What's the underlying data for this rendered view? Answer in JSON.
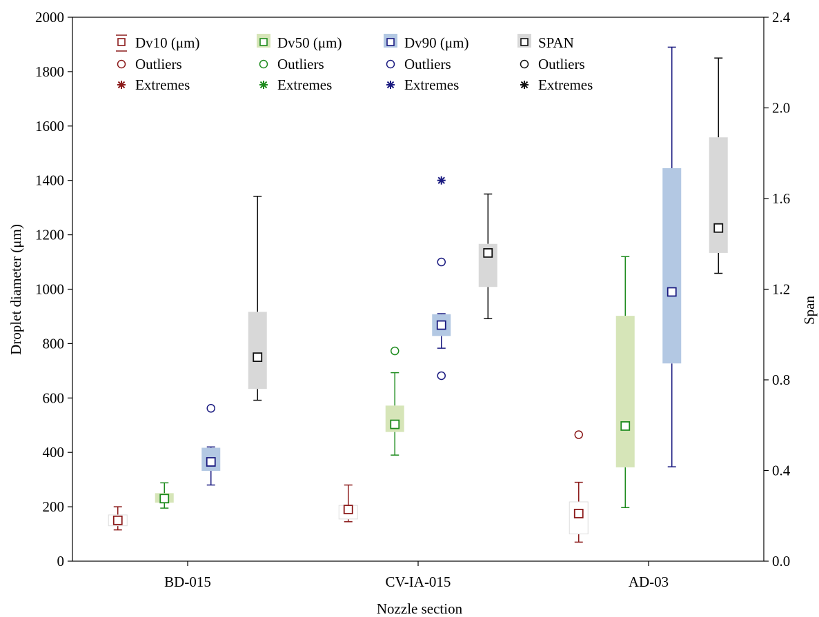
{
  "chart_data": {
    "type": "boxplot",
    "xlabel": "Nozzle section",
    "ylabel_left": "Droplet diameter (μm)",
    "ylabel_right": "Span",
    "categories": [
      "BD-015",
      "CV-IA-015",
      "AD-03"
    ],
    "ylim_left": [
      0,
      2000
    ],
    "ylim_right": [
      0,
      2.4
    ],
    "yticks_left": [
      "0",
      "200",
      "400",
      "600",
      "800",
      "1000",
      "1200",
      "1400",
      "1600",
      "1800",
      "2000"
    ],
    "yticks_right": [
      "0.0",
      "0.4",
      "0.8",
      "1.2",
      "1.6",
      "2.0",
      "2.4"
    ],
    "grid": false,
    "legend_position": "top",
    "series": [
      {
        "name": "Dv10 (μm)",
        "axis": "left",
        "color": "#8B1A1A",
        "fill": "#ffffff",
        "outliers_label": "Outliers",
        "extremes_label": "Extremes",
        "boxes": [
          {
            "category": "BD-015",
            "median": 150,
            "q1": 130,
            "q3": 170,
            "whisker_low": 115,
            "whisker_high": 200,
            "outliers": [],
            "extremes": []
          },
          {
            "category": "CV-IA-015",
            "median": 190,
            "q1": 155,
            "q3": 205,
            "whisker_low": 145,
            "whisker_high": 280,
            "outliers": [],
            "extremes": []
          },
          {
            "category": "AD-03",
            "median": 175,
            "q1": 100,
            "q3": 218,
            "whisker_low": 70,
            "whisker_high": 290,
            "outliers": [
              465
            ],
            "extremes": []
          }
        ]
      },
      {
        "name": "Dv50 (μm)",
        "axis": "left",
        "color": "#1E8B1E",
        "fill": "#d6e5b8",
        "outliers_label": "Outliers",
        "extremes_label": "Extremes",
        "boxes": [
          {
            "category": "BD-015",
            "median": 230,
            "q1": 215,
            "q3": 250,
            "whisker_low": 195,
            "whisker_high": 288,
            "outliers": [],
            "extremes": []
          },
          {
            "category": "CV-IA-015",
            "median": 503,
            "q1": 475,
            "q3": 572,
            "whisker_low": 390,
            "whisker_high": 693,
            "outliers": [
              773
            ],
            "extremes": []
          },
          {
            "category": "AD-03",
            "median": 497,
            "q1": 345,
            "q3": 902,
            "whisker_low": 197,
            "whisker_high": 1120,
            "outliers": [],
            "extremes": []
          }
        ]
      },
      {
        "name": "Dv90 (μm)",
        "axis": "left",
        "color": "#1A1A80",
        "fill": "#b3c8e3",
        "outliers_label": "Outliers",
        "extremes_label": "Extremes",
        "boxes": [
          {
            "category": "BD-015",
            "median": 365,
            "q1": 332,
            "q3": 417,
            "whisker_low": 280,
            "whisker_high": 420,
            "outliers": [
              562
            ],
            "extremes": []
          },
          {
            "category": "CV-IA-015",
            "median": 868,
            "q1": 828,
            "q3": 908,
            "whisker_low": 783,
            "whisker_high": 910,
            "outliers": [
              1100,
              682
            ],
            "extremes": [
              1400
            ]
          },
          {
            "category": "AD-03",
            "median": 990,
            "q1": 727,
            "q3": 1445,
            "whisker_low": 347,
            "whisker_high": 1890,
            "outliers": [],
            "extremes": []
          }
        ]
      },
      {
        "name": "SPAN",
        "axis": "right",
        "color": "#111111",
        "fill": "#d8d8d8",
        "outliers_label": "Outliers",
        "extremes_label": "Extremes",
        "boxes": [
          {
            "category": "BD-015",
            "median": 0.9,
            "q1": 0.76,
            "q3": 1.1,
            "whisker_low": 0.71,
            "whisker_high": 1.61,
            "outliers": [],
            "extremes": []
          },
          {
            "category": "CV-IA-015",
            "median": 1.36,
            "q1": 1.21,
            "q3": 1.4,
            "whisker_low": 1.07,
            "whisker_high": 1.62,
            "outliers": [],
            "extremes": []
          },
          {
            "category": "AD-03",
            "median": 1.47,
            "q1": 1.36,
            "q3": 1.87,
            "whisker_low": 1.27,
            "whisker_high": 2.22,
            "outliers": [],
            "extremes": []
          }
        ]
      }
    ]
  }
}
